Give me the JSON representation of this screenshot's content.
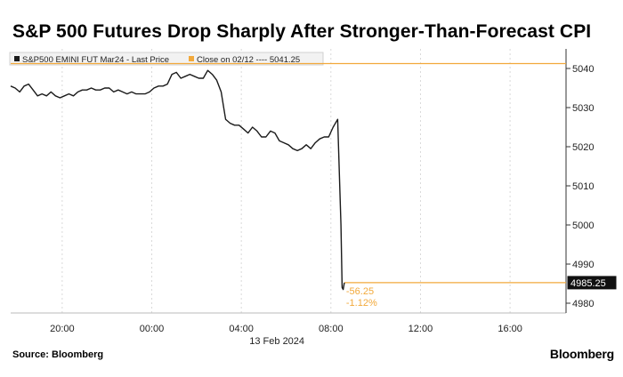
{
  "title": "S&P 500 Futures Drop Sharply After Stronger-Than-Forecast CPI",
  "source": "Source: Bloomberg",
  "logo": "Bloomberg",
  "colors": {
    "price_line": "#1a1a1a",
    "close_line": "#f2a93b",
    "annotation": "#f2a93b",
    "grid": "#d9d9d9"
  },
  "chart_data": {
    "type": "line",
    "legend": [
      {
        "label": "S&P500 EMINI FUT Mar24 - Last Price",
        "color": "#1a1a1a"
      },
      {
        "label": "Close on 02/12 ---- 5041.25",
        "color": "#f2a93b"
      }
    ],
    "legend_placement": "top-left",
    "x_ticks": [
      "20:00",
      "00:00",
      "04:00",
      "08:00",
      "12:00",
      "16:00"
    ],
    "x_tick_hours": [
      20,
      24,
      28,
      32,
      36,
      40
    ],
    "date_label": "13 Feb 2024",
    "xlim_hours": [
      17.7,
      42.5
    ],
    "y_ticks": [
      4980,
      4990,
      5000,
      5010,
      5020,
      5030,
      5040
    ],
    "ylim": [
      4977.5,
      5045
    ],
    "grid": "vertical",
    "close_value": 5041.25,
    "last_value": 4985.25,
    "last_label": "4985.25",
    "change_label": "-56.25",
    "change_pct_label": "-1.12%",
    "series": [
      {
        "x_hours": [
          17.7,
          17.9,
          18.1,
          18.3,
          18.5,
          18.7,
          18.9,
          19.1,
          19.3,
          19.5,
          19.7,
          19.9,
          20.1,
          20.3,
          20.5,
          20.7,
          20.9,
          21.1,
          21.3,
          21.5,
          21.7,
          21.9,
          22.1,
          22.3,
          22.5,
          22.7,
          22.9,
          23.1,
          23.3,
          23.5,
          23.7,
          23.9,
          24.1,
          24.3,
          24.5,
          24.7,
          24.9,
          25.1,
          25.3,
          25.5,
          25.7,
          25.9,
          26.1,
          26.3,
          26.5,
          26.7,
          26.9,
          27.1,
          27.3,
          27.5,
          27.7,
          27.9,
          28.1,
          28.3,
          28.5,
          28.7,
          28.9,
          29.1,
          29.3,
          29.5,
          29.7,
          29.9,
          30.1,
          30.3,
          30.5,
          30.7,
          30.9,
          31.1,
          31.3,
          31.5,
          31.7,
          31.9,
          32.1,
          32.3,
          32.45,
          32.5,
          32.55,
          32.6
        ],
        "values": [
          5035.5,
          5035,
          5034,
          5035.5,
          5036,
          5034.5,
          5033,
          5033.5,
          5033,
          5034,
          5033,
          5032.5,
          5033,
          5033.5,
          5033,
          5034,
          5034.5,
          5034.5,
          5035,
          5034.5,
          5034.5,
          5035,
          5035,
          5034,
          5034.5,
          5034,
          5033.5,
          5034,
          5033.5,
          5033.5,
          5033.5,
          5034,
          5035,
          5035.5,
          5035.5,
          5036,
          5038.5,
          5039,
          5037.5,
          5038,
          5038.5,
          5038,
          5037.5,
          5037.5,
          5039.5,
          5038.5,
          5037,
          5034,
          5027,
          5026,
          5025.5,
          5025.5,
          5024.5,
          5023.5,
          5025,
          5024,
          5022.5,
          5022.5,
          5024,
          5023.5,
          5021.5,
          5021,
          5020.5,
          5019.5,
          5019,
          5019.5,
          5020.5,
          5019.5,
          5021,
          5022,
          5022.5,
          5022.5,
          5025,
          5027,
          5000,
          4984,
          4983.5,
          4985.25
        ]
      }
    ]
  }
}
